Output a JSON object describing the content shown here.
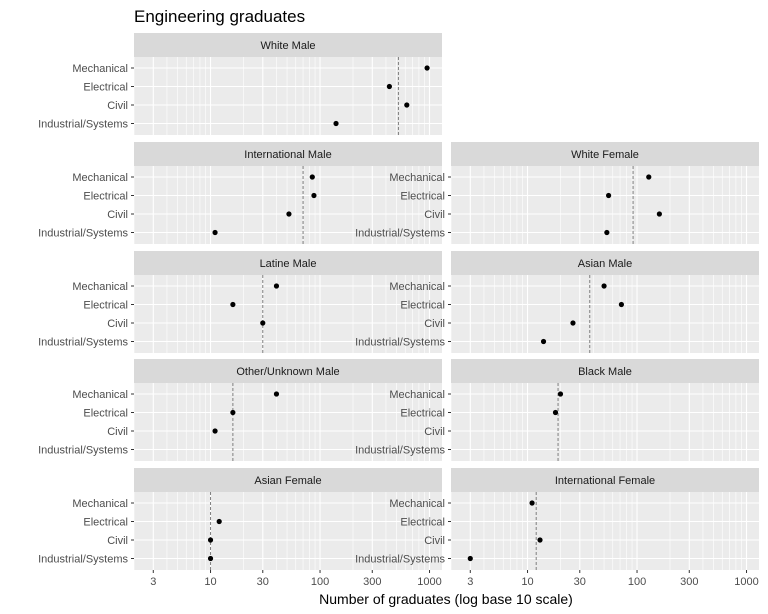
{
  "chart_data": {
    "type": "scatter",
    "title": "Engineering graduates",
    "xlabel": "Number of graduates (log base 10 scale)",
    "ylabel": "",
    "x_scale": "log10",
    "xlim": [
      2,
      1300
    ],
    "x_ticks": [
      3,
      10,
      30,
      100,
      300,
      1000
    ],
    "x_tick_labels": [
      "3",
      "10",
      "30",
      "100",
      "300",
      "1000"
    ],
    "categories": [
      "Mechanical",
      "Electrical",
      "Civil",
      "Industrial/Systems"
    ],
    "grid": true,
    "reference_line": "dashed vertical line per panel",
    "point_color": "#000000",
    "panel_background": "#ebebeb",
    "strip_background": "#d9d9d9",
    "panels": [
      {
        "name": "White Male",
        "values": [
          950,
          430,
          620,
          140
        ],
        "ref": 520
      },
      {
        "name": "International Male",
        "values": [
          85,
          88,
          52,
          11
        ],
        "ref": 70
      },
      {
        "name": "White Female",
        "values": [
          128,
          55,
          160,
          53
        ],
        "ref": 92
      },
      {
        "name": "Latine Male",
        "values": [
          40,
          16,
          30,
          null
        ],
        "ref": 30
      },
      {
        "name": "Asian Male",
        "values": [
          50,
          72,
          26,
          14
        ],
        "ref": 37
      },
      {
        "name": "Other/Unknown Male",
        "values": [
          40,
          16,
          11,
          null
        ],
        "ref": 16
      },
      {
        "name": "Black Male",
        "values": [
          20,
          18,
          null,
          null
        ],
        "ref": 19
      },
      {
        "name": "Asian Female",
        "values": [
          null,
          12,
          10,
          10
        ],
        "ref": 10
      },
      {
        "name": "International Female",
        "values": [
          11,
          null,
          13,
          3
        ],
        "ref": 12
      }
    ]
  }
}
